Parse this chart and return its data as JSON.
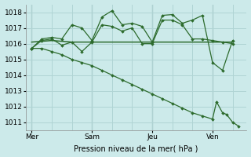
{
  "bg_color": "#cceaea",
  "grid_color": "#b0d4d4",
  "line_color": "#2d6b2d",
  "marker_color": "#2d6b2d",
  "xlabel": "Pression niveau de la mer( hPa )",
  "ylim": [
    1010.5,
    1018.5
  ],
  "yticks": [
    1011,
    1012,
    1013,
    1014,
    1015,
    1016,
    1017,
    1018
  ],
  "xlim": [
    -0.3,
    10.7
  ],
  "xtick_labels": [
    "Mer",
    "Sam",
    "Jeu",
    "Ven"
  ],
  "xtick_positions": [
    0,
    3,
    6,
    9
  ],
  "vline_positions": [
    0,
    3,
    6,
    9
  ],
  "series_flat": {
    "x": [
      0,
      1,
      2,
      3,
      4,
      5,
      6,
      7,
      8,
      9,
      10
    ],
    "y": [
      1016.1,
      1016.2,
      1016.1,
      1016.1,
      1016.1,
      1016.1,
      1016.1,
      1016.1,
      1016.1,
      1016.1,
      1016.1
    ]
  },
  "series_wavy1": {
    "x": [
      0,
      0.5,
      1,
      1.5,
      2,
      2.5,
      3,
      3.5,
      4,
      4.5,
      5,
      5.5,
      6,
      6.5,
      7,
      7.5,
      8,
      8.5,
      9,
      9.5,
      10
    ],
    "y": [
      1015.7,
      1016.2,
      1016.3,
      1015.9,
      1016.1,
      1015.5,
      1016.1,
      1017.2,
      1017.1,
      1016.8,
      1017.0,
      1016.0,
      1016.0,
      1017.5,
      1017.5,
      1017.2,
      1016.3,
      1016.3,
      1016.2,
      1016.1,
      1016.0
    ]
  },
  "series_wavy2": {
    "x": [
      0,
      0.5,
      1,
      1.5,
      2,
      2.5,
      3,
      3.5,
      4,
      4.5,
      5,
      5.5,
      6,
      6.5,
      7,
      7.5,
      8,
      8.5,
      9,
      9.5,
      10
    ],
    "y": [
      1015.7,
      1016.3,
      1016.4,
      1016.3,
      1017.2,
      1017.0,
      1016.2,
      1017.7,
      1018.1,
      1017.2,
      1017.3,
      1017.1,
      1016.1,
      1017.8,
      1017.85,
      1017.3,
      1017.5,
      1017.8,
      1014.8,
      1014.3,
      1016.2
    ]
  },
  "series_decline": {
    "x": [
      0,
      0.5,
      1,
      1.5,
      2,
      2.5,
      3,
      3.5,
      4,
      4.5,
      5,
      5.5,
      6,
      6.5,
      7,
      7.5,
      8,
      8.5,
      9,
      9.2,
      9.5,
      9.7,
      10,
      10.3
    ],
    "y": [
      1015.7,
      1015.7,
      1015.5,
      1015.3,
      1015.0,
      1014.8,
      1014.6,
      1014.3,
      1014.0,
      1013.7,
      1013.4,
      1013.1,
      1012.8,
      1012.5,
      1012.2,
      1011.9,
      1011.6,
      1011.4,
      1011.2,
      1012.3,
      1011.6,
      1011.5,
      1011.0,
      1010.75
    ]
  }
}
